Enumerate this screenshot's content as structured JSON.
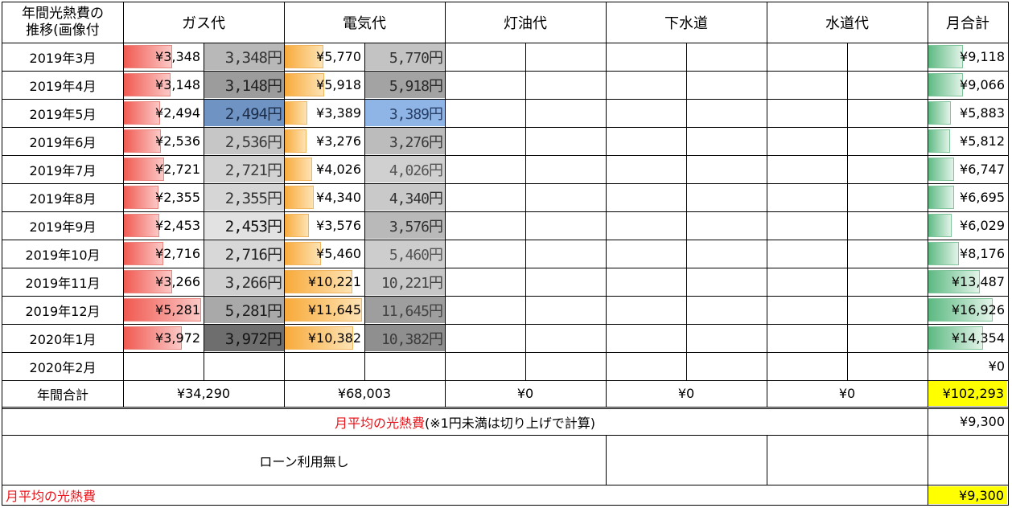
{
  "header": {
    "title": "年間光熱費の推移(画像付",
    "title_line1": "年間光熱費の",
    "title_line2": "推移(画像付",
    "gas": "ガス代",
    "electricity": "電気代",
    "kerosene": "灯油代",
    "sewer": "下水道",
    "water": "水道代",
    "monthly_total": "月合計"
  },
  "rows": [
    {
      "month": "2019年3月",
      "gas": "¥3,348",
      "gas_img": "3,348円",
      "gas_frac": 0.63,
      "elec": "¥5,770",
      "elec_img": "5,770円",
      "elec_frac": 0.5,
      "total": "¥9,118",
      "total_frac": 0.54
    },
    {
      "month": "2019年4月",
      "gas": "¥3,148",
      "gas_img": "3,148円",
      "gas_frac": 0.6,
      "elec": "¥5,918",
      "elec_img": "5,918円",
      "elec_frac": 0.51,
      "total": "¥9,066",
      "total_frac": 0.54
    },
    {
      "month": "2019年5月",
      "gas": "¥2,494",
      "gas_img": "2,494円",
      "gas_frac": 0.47,
      "elec": "¥3,389",
      "elec_img": "3,389円",
      "elec_frac": 0.29,
      "total": "¥5,883",
      "total_frac": 0.35
    },
    {
      "month": "2019年6月",
      "gas": "¥2,536",
      "gas_img": "2,536円",
      "gas_frac": 0.48,
      "elec": "¥3,276",
      "elec_img": "3,276円",
      "elec_frac": 0.28,
      "total": "¥5,812",
      "total_frac": 0.34
    },
    {
      "month": "2019年7月",
      "gas": "¥2,721",
      "gas_img": "2,721円",
      "gas_frac": 0.52,
      "elec": "¥4,026",
      "elec_img": "4,026円",
      "elec_frac": 0.35,
      "total": "¥6,747",
      "total_frac": 0.4
    },
    {
      "month": "2019年8月",
      "gas": "¥2,355",
      "gas_img": "2,355円",
      "gas_frac": 0.45,
      "elec": "¥4,340",
      "elec_img": "4,340円",
      "elec_frac": 0.37,
      "total": "¥6,695",
      "total_frac": 0.4
    },
    {
      "month": "2019年9月",
      "gas": "¥2,453",
      "gas_img": "2,453円",
      "gas_frac": 0.46,
      "elec": "¥3,576",
      "elec_img": "3,576円",
      "elec_frac": 0.31,
      "total": "¥6,029",
      "total_frac": 0.36
    },
    {
      "month": "2019年10月",
      "gas": "¥2,716",
      "gas_img": "2,716円",
      "gas_frac": 0.51,
      "elec": "¥5,460",
      "elec_img": "5,460円",
      "elec_frac": 0.47,
      "total": "¥8,176",
      "total_frac": 0.48
    },
    {
      "month": "2019年11月",
      "gas": "¥3,266",
      "gas_img": "3,266円",
      "gas_frac": 0.62,
      "elec": "¥10,221",
      "elec_img": "10,221円",
      "elec_frac": 0.88,
      "total": "¥13,487",
      "total_frac": 0.8
    },
    {
      "month": "2019年12月",
      "gas": "¥5,281",
      "gas_img": "5,281円",
      "gas_frac": 1.0,
      "elec": "¥11,645",
      "elec_img": "11,645円",
      "elec_frac": 1.0,
      "total": "¥16,926",
      "total_frac": 1.0
    },
    {
      "month": "2020年1月",
      "gas": "¥3,972",
      "gas_img": "3,972円",
      "gas_frac": 0.75,
      "elec": "¥10,382",
      "elec_img": "10,382円",
      "elec_frac": 0.89,
      "total": "¥14,354",
      "total_frac": 0.85
    },
    {
      "month": "2020年2月",
      "gas": "",
      "gas_img": "",
      "gas_frac": 0,
      "elec": "",
      "elec_img": "",
      "elec_frac": 0,
      "total": "¥0",
      "total_frac": 0
    }
  ],
  "image_styles": [
    {
      "bg": "#b8b8b8",
      "fg": "#333333"
    },
    {
      "bg": "#9c9c9c",
      "fg": "#222222"
    },
    {
      "bg": "#6f93c2",
      "fg": "#1c2d4a"
    },
    {
      "bg": "#c6c6c6",
      "fg": "#3a3a3a"
    },
    {
      "bg": "#d2d2d2",
      "fg": "#3c3c3c"
    },
    {
      "bg": "#d6d6d6",
      "fg": "#333333"
    },
    {
      "bg": "#e2e2e2",
      "fg": "#111111"
    },
    {
      "bg": "#d8d8d8",
      "fg": "#222222"
    },
    {
      "bg": "#cfcfcf",
      "fg": "#2a2a2a"
    },
    {
      "bg": "#a9a9a9",
      "fg": "#1e1e1e"
    },
    {
      "bg": "#6e6e6e",
      "fg": "#151515"
    },
    {
      "bg": "#ffffff",
      "fg": "#000000"
    }
  ],
  "elec_image_styles": [
    {
      "bg": "#c3c3c3",
      "fg": "#333333"
    },
    {
      "bg": "#a3a3a3",
      "fg": "#2a2a2a"
    },
    {
      "bg": "#8fb5e6",
      "fg": "#2a3f66"
    },
    {
      "bg": "#bcbcbc",
      "fg": "#3a3a3a"
    },
    {
      "bg": "#d0d0d0",
      "fg": "#555555"
    },
    {
      "bg": "#c9c9c9",
      "fg": "#333333"
    },
    {
      "bg": "#b9b9b9",
      "fg": "#333333"
    },
    {
      "bg": "#cdcdcd",
      "fg": "#555555"
    },
    {
      "bg": "#c7c7c7",
      "fg": "#444444"
    },
    {
      "bg": "#9e9e9e",
      "fg": "#444444"
    },
    {
      "bg": "#8f8f8f",
      "fg": "#3c3c3c"
    },
    {
      "bg": "#ffffff",
      "fg": "#000000"
    }
  ],
  "annual_total": {
    "label": "年間合計",
    "gas": "¥34,290",
    "electricity": "¥68,003",
    "kerosene": "¥0",
    "sewer": "¥0",
    "water": "¥0",
    "total": "¥102,293"
  },
  "monthly_average_note": {
    "label_red": "月平均の光熱費",
    "label_rest": "(※1円未満は切り上げで計算)",
    "value": "¥9,300"
  },
  "loan": {
    "label": "ローン利用無し"
  },
  "footer": {
    "label": "月平均の光熱費",
    "value": "¥9,300"
  },
  "colors": {
    "gas_bar": "#f0584f",
    "electricity_bar": "#f8a938",
    "total_bar": "#5ab880",
    "highlight": "#ffff00",
    "accent_text": "#e8141b"
  }
}
